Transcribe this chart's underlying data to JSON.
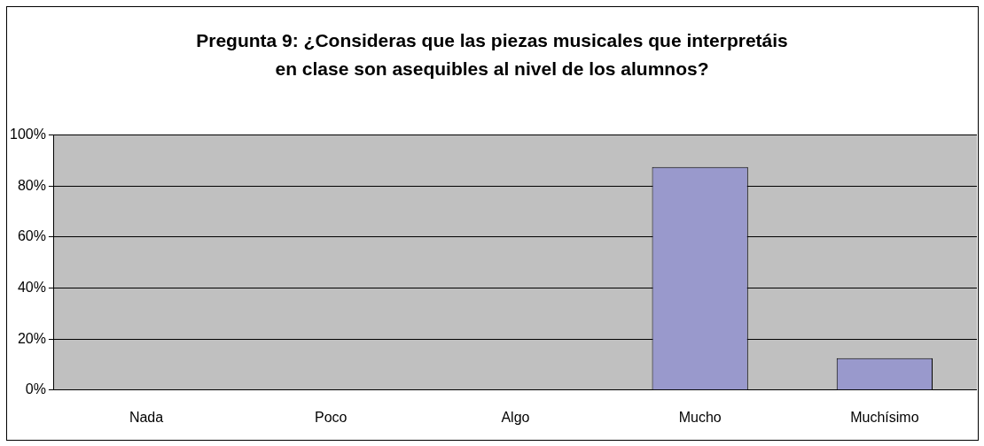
{
  "chart_data": {
    "type": "bar",
    "title": "Pregunta 9: ¿Consideras que las piezas musicales que interpretáis en clase son asequibles al nivel de los alumnos?",
    "categories": [
      "Nada",
      "Poco",
      "Algo",
      "Mucho",
      "Muchísimo"
    ],
    "values": [
      0,
      0,
      0,
      87.5,
      12.5
    ],
    "color": "#9999cc",
    "ylim": [
      0,
      100
    ],
    "yticks": [
      {
        "value": 0,
        "label": "0%"
      },
      {
        "value": 20,
        "label": "20%"
      },
      {
        "value": 40,
        "label": "40%"
      },
      {
        "value": 60,
        "label": "60%"
      },
      {
        "value": 80,
        "label": "80%"
      },
      {
        "value": 100,
        "label": "100%"
      }
    ],
    "grid": "y",
    "legend": false
  }
}
